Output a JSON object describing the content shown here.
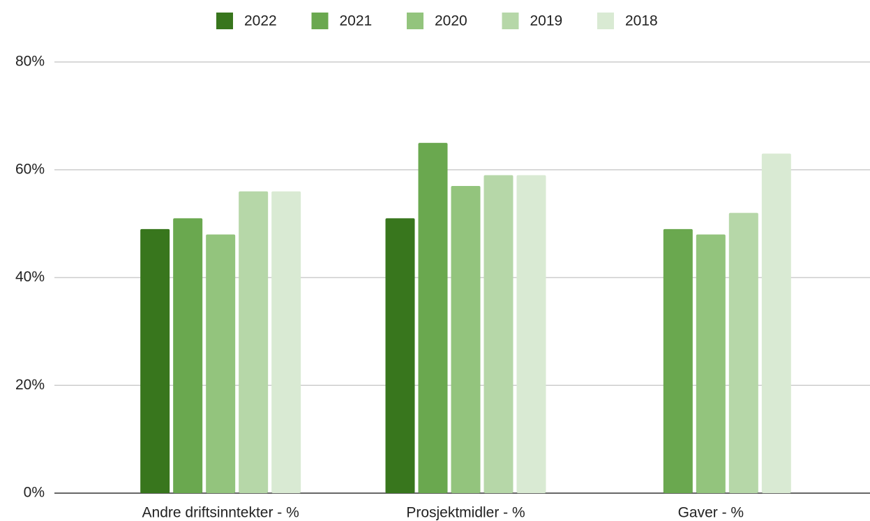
{
  "chart_data": {
    "type": "bar",
    "categories": [
      "Andre driftsinntekter - %",
      "Prosjektmidler - %",
      "Gaver - %"
    ],
    "series": [
      {
        "name": "2022",
        "color": "#38761d",
        "values": [
          49,
          51,
          null
        ]
      },
      {
        "name": "2021",
        "color": "#6aa84f",
        "values": [
          51,
          65,
          49
        ]
      },
      {
        "name": "2020",
        "color": "#93c47d",
        "values": [
          48,
          57,
          48
        ]
      },
      {
        "name": "2019",
        "color": "#b6d7a8",
        "values": [
          56,
          59,
          52
        ]
      },
      {
        "name": "2018",
        "color": "#d9ead3",
        "values": [
          56,
          59,
          63
        ]
      }
    ],
    "ylim": [
      0,
      80
    ],
    "yticks": [
      {
        "value": 0,
        "label": "0%"
      },
      {
        "value": 20,
        "label": "20%"
      },
      {
        "value": 40,
        "label": "40%"
      },
      {
        "value": 60,
        "label": "60%"
      },
      {
        "value": 80,
        "label": "80%"
      }
    ],
    "grid": true,
    "legend": "top"
  }
}
